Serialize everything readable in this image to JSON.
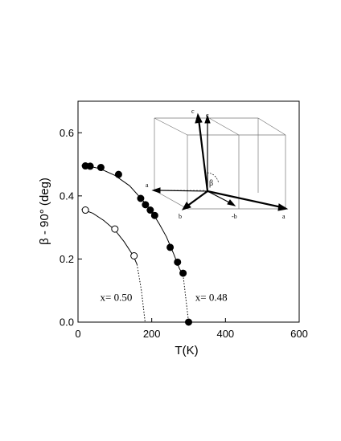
{
  "chart_data": {
    "type": "scatter",
    "xlabel": "T(K)",
    "ylabel": "β - 90° (deg)",
    "xlim": [
      0,
      600
    ],
    "ylim": [
      0,
      0.7
    ],
    "x_ticks": [
      0,
      200,
      400,
      600
    ],
    "y_ticks": [
      0.0,
      0.2,
      0.4,
      0.6
    ],
    "grid": false,
    "series": [
      {
        "name": "x= 0.48",
        "marker": "filled-circle",
        "x": [
          20,
          33,
          62,
          110,
          170,
          183,
          196,
          208,
          250,
          270,
          285,
          300
        ],
        "y": [
          0.495,
          0.494,
          0.49,
          0.468,
          0.392,
          0.372,
          0.355,
          0.338,
          0.237,
          0.19,
          0.155,
          0.0
        ],
        "fit_x": [
          10,
          30,
          60,
          100,
          140,
          180,
          200,
          220,
          240,
          260,
          275,
          285
        ],
        "fit_y": [
          0.496,
          0.494,
          0.486,
          0.465,
          0.432,
          0.38,
          0.35,
          0.312,
          0.27,
          0.215,
          0.17,
          0.15
        ],
        "extrapolation_x": [
          285,
          292,
          300
        ],
        "extrapolation_y": [
          0.15,
          0.08,
          0.0
        ]
      },
      {
        "name": "x= 0.50",
        "marker": "open-circle",
        "x": [
          20,
          100,
          152
        ],
        "y": [
          0.355,
          0.295,
          0.21
        ],
        "fit_x": [
          10,
          40,
          70,
          100,
          125,
          150,
          160
        ],
        "fit_y": [
          0.358,
          0.345,
          0.322,
          0.292,
          0.255,
          0.21,
          0.183
        ],
        "extrapolation_x": [
          160,
          172,
          182
        ],
        "extrapolation_y": [
          0.183,
          0.1,
          0.0
        ]
      }
    ],
    "annotations": [
      {
        "text": "x= 0.50",
        "x": 60,
        "y": 0.068
      },
      {
        "text": "x= 0.48",
        "x": 318,
        "y": 0.068
      }
    ],
    "inset_labels": [
      "c",
      "c",
      "a",
      "β",
      "b",
      "-b",
      "a"
    ]
  }
}
